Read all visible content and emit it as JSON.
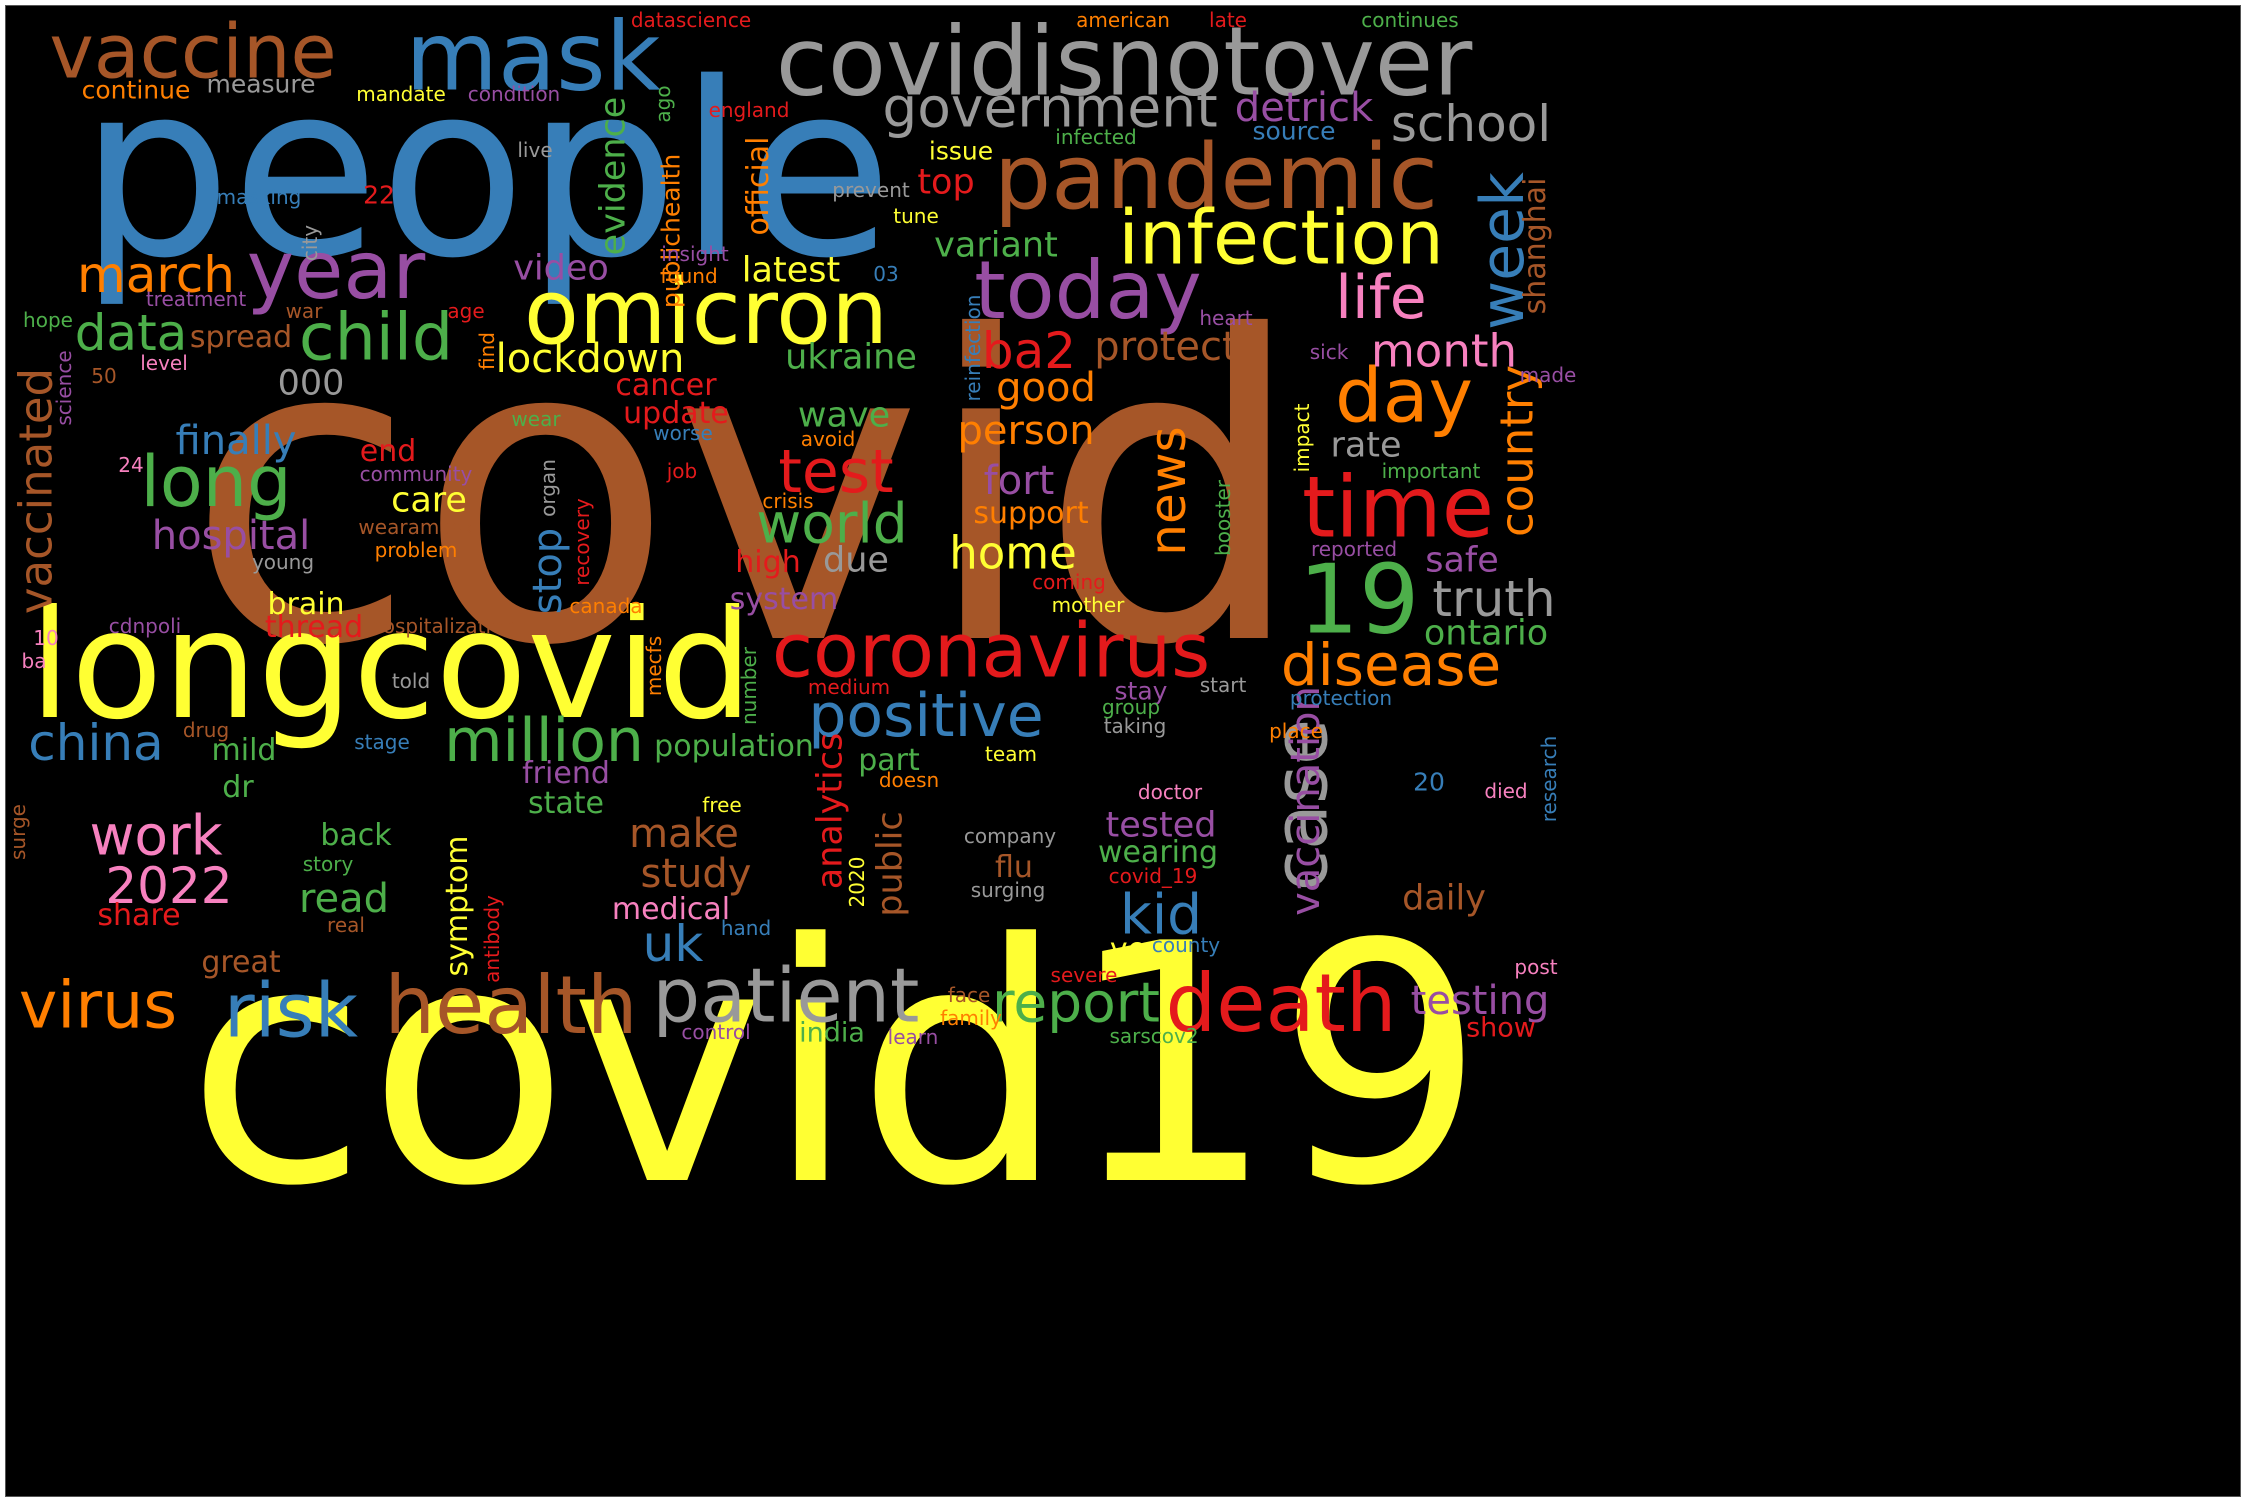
{
  "palette": {
    "brown": "#a65628",
    "blue": "#377eb8",
    "yellow": "#ffff33",
    "gray": "#999999",
    "red": "#e41a1c",
    "green": "#4daf4a",
    "purple": "#984ea3",
    "orange": "#ff7f00",
    "pink": "#f781bf"
  },
  "words": [
    {
      "text": "covid",
      "color": "brown",
      "orientation": "horizontal"
    },
    {
      "text": "covid19",
      "color": "yellow",
      "orientation": "horizontal"
    },
    {
      "text": "people",
      "color": "blue",
      "orientation": "horizontal"
    },
    {
      "text": "longcovid",
      "color": "yellow",
      "orientation": "horizontal"
    },
    {
      "text": "covidisnotover",
      "color": "gray",
      "orientation": "horizontal"
    },
    {
      "text": "mask",
      "color": "blue",
      "orientation": "horizontal"
    },
    {
      "text": "vaccine",
      "color": "brown",
      "orientation": "horizontal"
    },
    {
      "text": "pandemic",
      "color": "brown",
      "orientation": "horizontal"
    },
    {
      "text": "health",
      "color": "brown",
      "orientation": "horizontal"
    },
    {
      "text": "death",
      "color": "red",
      "orientation": "horizontal"
    },
    {
      "text": "patient",
      "color": "gray",
      "orientation": "horizontal"
    },
    {
      "text": "omicron",
      "color": "yellow",
      "orientation": "horizontal"
    },
    {
      "text": "coronavirus",
      "color": "red",
      "orientation": "horizontal"
    },
    {
      "text": "year",
      "color": "purple",
      "orientation": "horizontal"
    },
    {
      "text": "infection",
      "color": "yellow",
      "orientation": "horizontal"
    },
    {
      "text": "today",
      "color": "purple",
      "orientation": "horizontal"
    },
    {
      "text": "time",
      "color": "red",
      "orientation": "horizontal"
    },
    {
      "text": "virus",
      "color": "orange",
      "orientation": "horizontal"
    },
    {
      "text": "risk",
      "color": "blue",
      "orientation": "horizontal"
    },
    {
      "text": "19",
      "color": "green",
      "orientation": "horizontal"
    },
    {
      "text": "day",
      "color": "orange",
      "orientation": "horizontal"
    },
    {
      "text": "case",
      "color": "gray",
      "orientation": "vertical"
    },
    {
      "text": "government",
      "color": "gray",
      "orientation": "horizontal"
    },
    {
      "text": "child",
      "color": "green",
      "orientation": "horizontal"
    },
    {
      "text": "long",
      "color": "green",
      "orientation": "horizontal"
    },
    {
      "text": "disease",
      "color": "orange",
      "orientation": "horizontal"
    },
    {
      "text": "positive",
      "color": "blue",
      "orientation": "horizontal"
    },
    {
      "text": "million",
      "color": "green",
      "orientation": "horizontal"
    },
    {
      "text": "week",
      "color": "blue",
      "orientation": "vertical"
    },
    {
      "text": "life",
      "color": "pink",
      "orientation": "horizontal"
    },
    {
      "text": "report",
      "color": "green",
      "orientation": "horizontal"
    },
    {
      "text": "school",
      "color": "gray",
      "orientation": "horizontal"
    },
    {
      "text": "truth",
      "color": "gray",
      "orientation": "horizontal"
    },
    {
      "text": "test",
      "color": "red",
      "orientation": "horizontal"
    },
    {
      "text": "world",
      "color": "green",
      "orientation": "horizontal"
    },
    {
      "text": "china",
      "color": "blue",
      "orientation": "horizontal"
    },
    {
      "text": "work",
      "color": "pink",
      "orientation": "horizontal"
    },
    {
      "text": "2022",
      "color": "pink",
      "orientation": "horizontal"
    },
    {
      "text": "march",
      "color": "orange",
      "orientation": "horizontal"
    },
    {
      "text": "data",
      "color": "green",
      "orientation": "horizontal"
    },
    {
      "text": "news",
      "color": "orange",
      "orientation": "vertical"
    },
    {
      "text": "kid",
      "color": "blue",
      "orientation": "horizontal"
    },
    {
      "text": "uk",
      "color": "blue",
      "orientation": "horizontal"
    },
    {
      "text": "ba2",
      "color": "red",
      "orientation": "horizontal"
    },
    {
      "text": "month",
      "color": "pink",
      "orientation": "horizontal"
    },
    {
      "text": "vaccinated",
      "color": "brown",
      "orientation": "vertical"
    },
    {
      "text": "country",
      "color": "orange",
      "orientation": "vertical"
    },
    {
      "text": "lockdown",
      "color": "yellow",
      "orientation": "horizontal"
    },
    {
      "text": "hospital",
      "color": "purple",
      "orientation": "horizontal"
    },
    {
      "text": "home",
      "color": "yellow",
      "orientation": "horizontal"
    },
    {
      "text": "stop",
      "color": "blue",
      "orientation": "vertical"
    },
    {
      "text": "detrick",
      "color": "purple",
      "orientation": "horizontal"
    },
    {
      "text": "protect",
      "color": "brown",
      "orientation": "horizontal"
    },
    {
      "text": "testing",
      "color": "purple",
      "orientation": "horizontal"
    },
    {
      "text": "study",
      "color": "brown",
      "orientation": "horizontal"
    },
    {
      "text": "make",
      "color": "brown",
      "orientation": "horizontal"
    },
    {
      "text": "vaccination",
      "color": "purple",
      "orientation": "vertical"
    },
    {
      "text": "evidence",
      "color": "green",
      "orientation": "vertical"
    },
    {
      "text": "analytics",
      "color": "red",
      "orientation": "vertical"
    },
    {
      "text": "fort",
      "color": "purple",
      "orientation": "horizontal"
    },
    {
      "text": "good",
      "color": "orange",
      "orientation": "horizontal"
    },
    {
      "text": "person",
      "color": "orange",
      "orientation": "horizontal"
    },
    {
      "text": "finally",
      "color": "blue",
      "orientation": "horizontal"
    },
    {
      "text": "ukraine",
      "color": "green",
      "orientation": "horizontal"
    },
    {
      "text": "variant",
      "color": "green",
      "orientation": "horizontal"
    },
    {
      "text": "video",
      "color": "purple",
      "orientation": "horizontal"
    },
    {
      "text": "latest",
      "color": "yellow",
      "orientation": "horizontal"
    },
    {
      "text": "wave",
      "color": "green",
      "orientation": "horizontal"
    },
    {
      "text": "rate",
      "color": "gray",
      "orientation": "horizontal"
    },
    {
      "text": "safe",
      "color": "purple",
      "orientation": "horizontal"
    },
    {
      "text": "ontario",
      "color": "green",
      "orientation": "horizontal"
    },
    {
      "text": "daily",
      "color": "brown",
      "orientation": "horizontal"
    },
    {
      "text": "tested",
      "color": "purple",
      "orientation": "horizontal"
    },
    {
      "text": "read",
      "color": "green",
      "orientation": "horizontal"
    },
    {
      "text": "public",
      "color": "brown",
      "orientation": "vertical"
    },
    {
      "text": "symptom",
      "color": "yellow",
      "orientation": "vertical"
    },
    {
      "text": "population",
      "color": "green",
      "orientation": "horizontal"
    },
    {
      "text": "000",
      "color": "gray",
      "orientation": "horizontal"
    },
    {
      "text": "due",
      "color": "gray",
      "orientation": "horizontal"
    },
    {
      "text": "care",
      "color": "yellow",
      "orientation": "horizontal"
    },
    {
      "text": "shanghai",
      "color": "brown",
      "orientation": "vertical"
    },
    {
      "text": "top",
      "color": "red",
      "orientation": "horizontal"
    },
    {
      "text": "official",
      "color": "orange",
      "orientation": "vertical"
    },
    {
      "text": "publichealth",
      "color": "orange",
      "orientation": "vertical"
    },
    {
      "text": "medical",
      "color": "pink",
      "orientation": "horizontal"
    },
    {
      "text": "back",
      "color": "green",
      "orientation": "horizontal"
    },
    {
      "text": "ve",
      "color": "yellow",
      "orientation": "horizontal"
    },
    {
      "text": "wearing",
      "color": "green",
      "orientation": "horizontal"
    },
    {
      "text": "great",
      "color": "brown",
      "orientation": "horizontal"
    },
    {
      "text": "mild",
      "color": "green",
      "orientation": "horizontal"
    },
    {
      "text": "friend",
      "color": "purple",
      "orientation": "horizontal"
    },
    {
      "text": "state",
      "color": "green",
      "orientation": "horizontal"
    },
    {
      "text": "flu",
      "color": "brown",
      "orientation": "horizontal"
    },
    {
      "text": "part",
      "color": "green",
      "orientation": "horizontal"
    },
    {
      "text": "spread",
      "color": "brown",
      "orientation": "horizontal"
    },
    {
      "text": "update",
      "color": "red",
      "orientation": "horizontal"
    },
    {
      "text": "cancer",
      "color": "red",
      "orientation": "horizontal"
    },
    {
      "text": "end",
      "color": "red",
      "orientation": "horizontal"
    },
    {
      "text": "system",
      "color": "purple",
      "orientation": "horizontal"
    },
    {
      "text": "brain",
      "color": "yellow",
      "orientation": "horizontal"
    },
    {
      "text": "thread",
      "color": "red",
      "orientation": "horizontal"
    },
    {
      "text": "support",
      "color": "orange",
      "orientation": "horizontal"
    },
    {
      "text": "high",
      "color": "red",
      "orientation": "horizontal"
    },
    {
      "text": "dr",
      "color": "green",
      "orientation": "horizontal"
    },
    {
      "text": "share",
      "color": "red",
      "orientation": "horizontal"
    },
    {
      "text": "india",
      "color": "green",
      "orientation": "horizontal"
    },
    {
      "text": "show",
      "color": "red",
      "orientation": "horizontal"
    },
    {
      "text": "issue",
      "color": "yellow",
      "orientation": "horizontal"
    },
    {
      "text": "source",
      "color": "blue",
      "orientation": "horizontal"
    },
    {
      "text": "measure",
      "color": "gray",
      "orientation": "horizontal"
    },
    {
      "text": "continue",
      "color": "orange",
      "orientation": "horizontal"
    },
    {
      "text": "mandate",
      "color": "yellow",
      "orientation": "horizontal"
    },
    {
      "text": "condition",
      "color": "purple",
      "orientation": "horizontal"
    },
    {
      "text": "england",
      "color": "red",
      "orientation": "horizontal"
    },
    {
      "text": "infected",
      "color": "green",
      "orientation": "horizontal"
    },
    {
      "text": "live",
      "color": "gray",
      "orientation": "horizontal"
    },
    {
      "text": "masking",
      "color": "blue",
      "orientation": "horizontal"
    },
    {
      "text": "22",
      "color": "red",
      "orientation": "horizontal"
    },
    {
      "text": "prevent",
      "color": "gray",
      "orientation": "horizontal"
    },
    {
      "text": "tune",
      "color": "yellow",
      "orientation": "horizontal"
    },
    {
      "text": "insight",
      "color": "purple",
      "orientation": "horizontal"
    },
    {
      "text": "found",
      "color": "orange",
      "orientation": "horizontal"
    },
    {
      "text": "03",
      "color": "blue",
      "orientation": "horizontal"
    },
    {
      "text": "treatment",
      "color": "purple",
      "orientation": "horizontal"
    },
    {
      "text": "war",
      "color": "brown",
      "orientation": "horizontal"
    },
    {
      "text": "age",
      "color": "red",
      "orientation": "horizontal"
    },
    {
      "text": "hope",
      "color": "green",
      "orientation": "horizontal"
    },
    {
      "text": "level",
      "color": "pink",
      "orientation": "horizontal"
    },
    {
      "text": "heart",
      "color": "purple",
      "orientation": "horizontal"
    },
    {
      "text": "sick",
      "color": "purple",
      "orientation": "horizontal"
    },
    {
      "text": "made",
      "color": "purple",
      "orientation": "horizontal"
    },
    {
      "text": "wear",
      "color": "green",
      "orientation": "horizontal"
    },
    {
      "text": "avoid",
      "color": "orange",
      "orientation": "horizontal"
    },
    {
      "text": "worse",
      "color": "blue",
      "orientation": "horizontal"
    },
    {
      "text": "24",
      "color": "pink",
      "orientation": "horizontal"
    },
    {
      "text": "community",
      "color": "purple",
      "orientation": "horizontal"
    },
    {
      "text": "job",
      "color": "red",
      "orientation": "horizontal"
    },
    {
      "text": "crisis",
      "color": "orange",
      "orientation": "horizontal"
    },
    {
      "text": "wearamask",
      "color": "brown",
      "orientation": "horizontal"
    },
    {
      "text": "problem",
      "color": "orange",
      "orientation": "horizontal"
    },
    {
      "text": "young",
      "color": "gray",
      "orientation": "horizontal"
    },
    {
      "text": "important",
      "color": "green",
      "orientation": "horizontal"
    },
    {
      "text": "reported",
      "color": "purple",
      "orientation": "horizontal"
    },
    {
      "text": "coming",
      "color": "red",
      "orientation": "horizontal"
    },
    {
      "text": "mother",
      "color": "yellow",
      "orientation": "horizontal"
    },
    {
      "text": "canada",
      "color": "orange",
      "orientation": "horizontal"
    },
    {
      "text": "cdnpoli",
      "color": "purple",
      "orientation": "horizontal"
    },
    {
      "text": "hospitalization",
      "color": "brown",
      "orientation": "horizontal"
    },
    {
      "text": "10",
      "color": "pink",
      "orientation": "horizontal"
    },
    {
      "text": "ba",
      "color": "pink",
      "orientation": "horizontal"
    },
    {
      "text": "told",
      "color": "gray",
      "orientation": "horizontal"
    },
    {
      "text": "medium",
      "color": "red",
      "orientation": "horizontal"
    },
    {
      "text": "stay",
      "color": "purple",
      "orientation": "horizontal"
    },
    {
      "text": "start",
      "color": "gray",
      "orientation": "horizontal"
    },
    {
      "text": "group",
      "color": "green",
      "orientation": "horizontal"
    },
    {
      "text": "protection",
      "color": "blue",
      "orientation": "horizontal"
    },
    {
      "text": "taking",
      "color": "gray",
      "orientation": "horizontal"
    },
    {
      "text": "drug",
      "color": "brown",
      "orientation": "horizontal"
    },
    {
      "text": "stage",
      "color": "blue",
      "orientation": "horizontal"
    },
    {
      "text": "team",
      "color": "yellow",
      "orientation": "horizontal"
    },
    {
      "text": "place",
      "color": "orange",
      "orientation": "horizontal"
    },
    {
      "text": "doesn",
      "color": "orange",
      "orientation": "horizontal"
    },
    {
      "text": "20",
      "color": "blue",
      "orientation": "horizontal"
    },
    {
      "text": "died",
      "color": "pink",
      "orientation": "horizontal"
    },
    {
      "text": "doctor",
      "color": "pink",
      "orientation": "horizontal"
    },
    {
      "text": "free",
      "color": "yellow",
      "orientation": "horizontal"
    },
    {
      "text": "company",
      "color": "gray",
      "orientation": "horizontal"
    },
    {
      "text": "story",
      "color": "green",
      "orientation": "horizontal"
    },
    {
      "text": "covid_19",
      "color": "red",
      "orientation": "horizontal"
    },
    {
      "text": "surging",
      "color": "gray",
      "orientation": "horizontal"
    },
    {
      "text": "real",
      "color": "brown",
      "orientation": "horizontal"
    },
    {
      "text": "hand",
      "color": "blue",
      "orientation": "horizontal"
    },
    {
      "text": "county",
      "color": "blue",
      "orientation": "horizontal"
    },
    {
      "text": "severe",
      "color": "red",
      "orientation": "horizontal"
    },
    {
      "text": "post",
      "color": "pink",
      "orientation": "horizontal"
    },
    {
      "text": "face",
      "color": "brown",
      "orientation": "horizontal"
    },
    {
      "text": "family",
      "color": "orange",
      "orientation": "horizontal"
    },
    {
      "text": "control",
      "color": "purple",
      "orientation": "horizontal"
    },
    {
      "text": "learn",
      "color": "purple",
      "orientation": "horizontal"
    },
    {
      "text": "sarscov2",
      "color": "green",
      "orientation": "horizontal"
    },
    {
      "text": "datascience",
      "color": "red",
      "orientation": "horizontal"
    },
    {
      "text": "american",
      "color": "orange",
      "orientation": "horizontal"
    },
    {
      "text": "late",
      "color": "red",
      "orientation": "horizontal"
    },
    {
      "text": "continues",
      "color": "green",
      "orientation": "horizontal"
    },
    {
      "text": "ago",
      "color": "green",
      "orientation": "vertical"
    },
    {
      "text": "city",
      "color": "gray",
      "orientation": "vertical"
    },
    {
      "text": "science",
      "color": "purple",
      "orientation": "vertical"
    },
    {
      "text": "50",
      "color": "brown",
      "orientation": "horizontal"
    },
    {
      "text": "find",
      "color": "orange",
      "orientation": "vertical"
    },
    {
      "text": "reinfection",
      "color": "blue",
      "orientation": "vertical"
    },
    {
      "text": "impact",
      "color": "yellow",
      "orientation": "vertical"
    },
    {
      "text": "organ",
      "color": "gray",
      "orientation": "vertical"
    },
    {
      "text": "recovery",
      "color": "red",
      "orientation": "vertical"
    },
    {
      "text": "booster",
      "color": "green",
      "orientation": "vertical"
    },
    {
      "text": "mecfs",
      "color": "orange",
      "orientation": "vertical"
    },
    {
      "text": "number",
      "color": "green",
      "orientation": "vertical"
    },
    {
      "text": "2020",
      "color": "yellow",
      "orientation": "vertical"
    },
    {
      "text": "antibody",
      "color": "red",
      "orientation": "vertical"
    },
    {
      "text": "research",
      "color": "blue",
      "orientation": "vertical"
    },
    {
      "text": "surge",
      "color": "brown",
      "orientation": "vertical"
    }
  ]
}
